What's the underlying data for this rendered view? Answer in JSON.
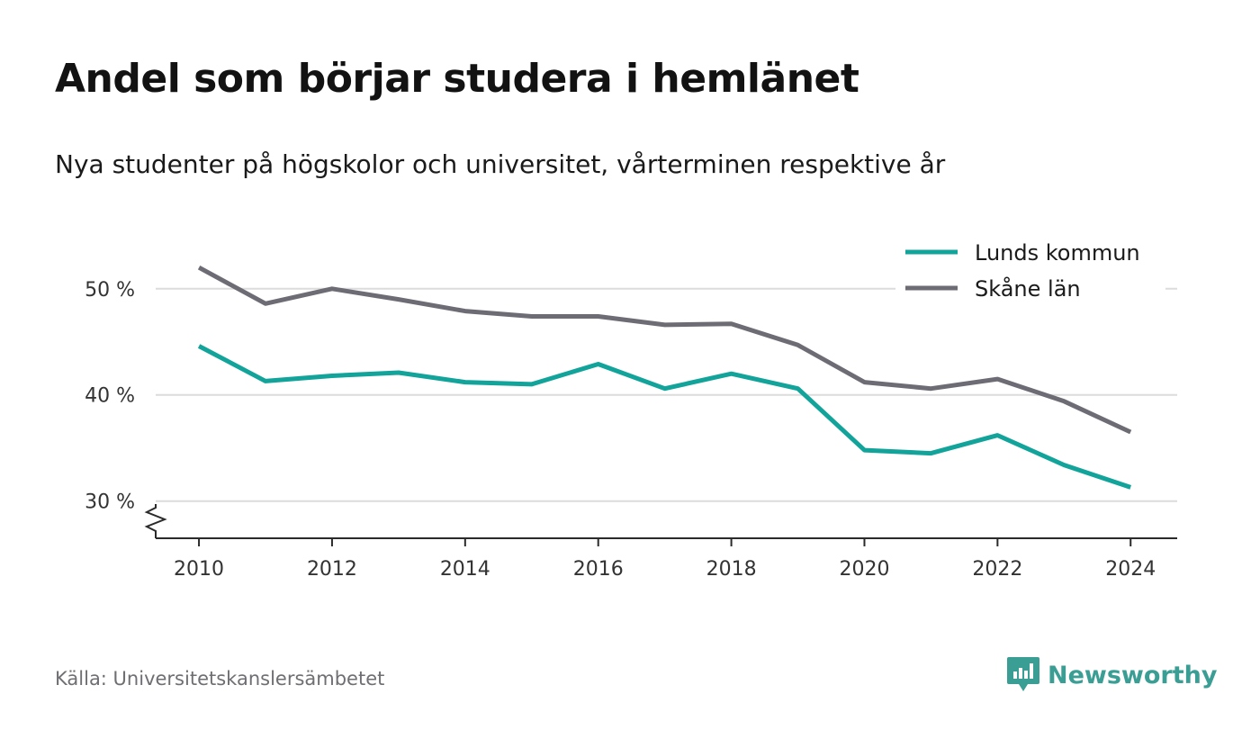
{
  "title": "Andel som börjar studera i hemlänet",
  "subtitle": "Nya studenter på högskolor och universitet, vårterminen respektive år",
  "source": "Källa: Universitetskanslersämbetet",
  "brand": {
    "name": "Newsworthy",
    "icon": "newsworthy-logo-icon",
    "color": "#3a9e94"
  },
  "chart_data": {
    "type": "line",
    "x": [
      2010,
      2011,
      2012,
      2013,
      2014,
      2015,
      2016,
      2017,
      2018,
      2019,
      2020,
      2021,
      2022,
      2023,
      2024
    ],
    "series": [
      {
        "name": "Lunds kommun",
        "color": "#12a39a",
        "values": [
          44.6,
          41.3,
          41.8,
          42.1,
          41.2,
          41.0,
          42.9,
          40.6,
          42.0,
          40.6,
          34.8,
          34.5,
          36.2,
          33.4,
          31.3
        ]
      },
      {
        "name": "Skåne län",
        "color": "#6d6c74",
        "values": [
          52.0,
          48.6,
          50.0,
          49.0,
          47.9,
          47.4,
          47.4,
          46.6,
          46.7,
          44.7,
          41.2,
          40.6,
          41.5,
          39.4,
          36.5
        ]
      }
    ],
    "xticks": [
      2010,
      2012,
      2014,
      2016,
      2018,
      2020,
      2022,
      2024
    ],
    "yticks": [
      30,
      40,
      50
    ],
    "ytick_labels": [
      "30 %",
      "40 %",
      "50 %"
    ],
    "xlim": [
      2009.35,
      2024.7
    ],
    "ylim": [
      26.5,
      56
    ],
    "xlabel": "",
    "ylabel": "",
    "grid": "horizontal",
    "legend": "top-right",
    "y_axis_break": true
  }
}
